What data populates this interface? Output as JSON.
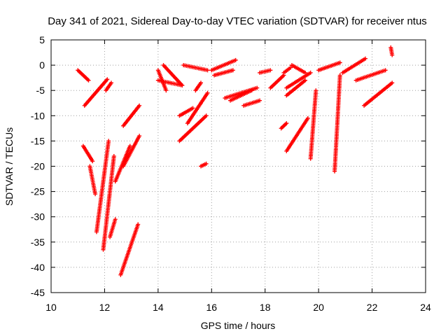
{
  "chart_data": {
    "type": "scatter",
    "title": "Day 341 of 2021, Sidereal Day-to-day VTEC variation (SDTVAR) for receiver ntus",
    "xlabel": "GPS time / hours",
    "ylabel": "SDTVAR / TECUs",
    "xlim": [
      10,
      24
    ],
    "ylim": [
      -45,
      5
    ],
    "xticks": [
      10,
      12,
      14,
      16,
      18,
      20,
      22,
      24
    ],
    "yticks": [
      5,
      0,
      -5,
      -10,
      -15,
      -20,
      -25,
      -30,
      -35,
      -40,
      -45
    ],
    "grid": true,
    "marker": "+",
    "color": "#ff0000",
    "series": [
      {
        "name": "arc01",
        "x": [
          11.0,
          11.4
        ],
        "y": [
          -1.0,
          -3.0
        ]
      },
      {
        "name": "arc02",
        "x": [
          11.25,
          12.1
        ],
        "y": [
          -8.0,
          -2.8
        ]
      },
      {
        "name": "arc03",
        "x": [
          12.05,
          12.25
        ],
        "y": [
          -5.0,
          -3.5
        ]
      },
      {
        "name": "arc04",
        "x": [
          11.2,
          11.55
        ],
        "y": [
          -16.0,
          -19.0
        ]
      },
      {
        "name": "arc05",
        "x": [
          11.45,
          11.65
        ],
        "y": [
          -20.0,
          -25.5
        ]
      },
      {
        "name": "arc06",
        "x": [
          11.7,
          12.15
        ],
        "y": [
          -33.0,
          -15.0
        ]
      },
      {
        "name": "arc07",
        "x": [
          11.95,
          12.35
        ],
        "y": [
          -36.5,
          -18.0
        ]
      },
      {
        "name": "arc08",
        "x": [
          12.2,
          12.4
        ],
        "y": [
          -34.0,
          -30.5
        ]
      },
      {
        "name": "arc09",
        "x": [
          12.4,
          12.95
        ],
        "y": [
          -23.0,
          -16.0
        ]
      },
      {
        "name": "arc10",
        "x": [
          12.7,
          13.3
        ],
        "y": [
          -20.0,
          -14.0
        ]
      },
      {
        "name": "arc11",
        "x": [
          12.6,
          13.25
        ],
        "y": [
          -41.5,
          -31.5
        ]
      },
      {
        "name": "arc12",
        "x": [
          12.7,
          13.3
        ],
        "y": [
          -12.0,
          -8.0
        ]
      },
      {
        "name": "arc13",
        "x": [
          14.0,
          14.3
        ],
        "y": [
          -1.0,
          -5.0
        ]
      },
      {
        "name": "arc14",
        "x": [
          14.2,
          14.9
        ],
        "y": [
          0.0,
          -4.0
        ]
      },
      {
        "name": "arc15",
        "x": [
          14.0,
          14.9
        ],
        "y": [
          -3.0,
          -4.0
        ]
      },
      {
        "name": "arc16",
        "x": [
          14.95,
          15.85
        ],
        "y": [
          0.0,
          -1.0
        ]
      },
      {
        "name": "arc17",
        "x": [
          15.4,
          15.6
        ],
        "y": [
          -5.0,
          -3.5
        ]
      },
      {
        "name": "arc18",
        "x": [
          14.8,
          15.3
        ],
        "y": [
          -10.0,
          -8.5
        ]
      },
      {
        "name": "arc19",
        "x": [
          15.1,
          15.85
        ],
        "y": [
          -11.5,
          -5.5
        ]
      },
      {
        "name": "arc20",
        "x": [
          14.8,
          15.8
        ],
        "y": [
          -15.0,
          -10.0
        ]
      },
      {
        "name": "arc21",
        "x": [
          15.6,
          15.8
        ],
        "y": [
          -20.0,
          -19.5
        ]
      },
      {
        "name": "arc22",
        "x": [
          16.0,
          16.9
        ],
        "y": [
          -1.0,
          1.0
        ]
      },
      {
        "name": "arc23",
        "x": [
          16.1,
          16.8
        ],
        "y": [
          -2.0,
          -1.0
        ]
      },
      {
        "name": "arc24",
        "x": [
          16.5,
          17.7
        ],
        "y": [
          -6.5,
          -4.5
        ]
      },
      {
        "name": "arc25",
        "x": [
          16.7,
          17.5
        ],
        "y": [
          -7.0,
          -5.0
        ]
      },
      {
        "name": "arc26",
        "x": [
          17.2,
          17.8
        ],
        "y": [
          -8.0,
          -7.0
        ]
      },
      {
        "name": "arc27",
        "x": [
          17.8,
          18.2
        ],
        "y": [
          -1.5,
          -1.0
        ]
      },
      {
        "name": "arc28",
        "x": [
          18.2,
          18.7
        ],
        "y": [
          -4.5,
          -2.0
        ]
      },
      {
        "name": "arc29",
        "x": [
          18.7,
          18.95
        ],
        "y": [
          -1.5,
          -0.5
        ]
      },
      {
        "name": "arc30",
        "x": [
          18.6,
          18.8
        ],
        "y": [
          -12.5,
          -11.5
        ]
      },
      {
        "name": "arc31",
        "x": [
          18.8,
          19.6
        ],
        "y": [
          -17.0,
          -10.5
        ]
      },
      {
        "name": "arc32",
        "x": [
          18.8,
          19.7
        ],
        "y": [
          -4.5,
          -1.5
        ]
      },
      {
        "name": "arc33",
        "x": [
          19.0,
          19.5
        ],
        "y": [
          0.0,
          -1.5
        ]
      },
      {
        "name": "arc34",
        "x": [
          18.8,
          19.5
        ],
        "y": [
          -6.0,
          -3.0
        ]
      },
      {
        "name": "arc35",
        "x": [
          19.7,
          19.9
        ],
        "y": [
          -18.5,
          -5.0
        ]
      },
      {
        "name": "arc36",
        "x": [
          20.0,
          20.8
        ],
        "y": [
          -1.0,
          0.5
        ]
      },
      {
        "name": "arc37",
        "x": [
          20.6,
          20.8
        ],
        "y": [
          -21.0,
          -2.0
        ]
      },
      {
        "name": "arc38",
        "x": [
          20.9,
          21.75
        ],
        "y": [
          -1.5,
          1.3
        ]
      },
      {
        "name": "arc39",
        "x": [
          21.4,
          22.5
        ],
        "y": [
          -3.0,
          -1.0
        ]
      },
      {
        "name": "arc40",
        "x": [
          21.7,
          22.75
        ],
        "y": [
          -8.0,
          -3.5
        ]
      },
      {
        "name": "arc41",
        "x": [
          22.7,
          22.75
        ],
        "y": [
          3.5,
          2.0
        ]
      }
    ]
  }
}
